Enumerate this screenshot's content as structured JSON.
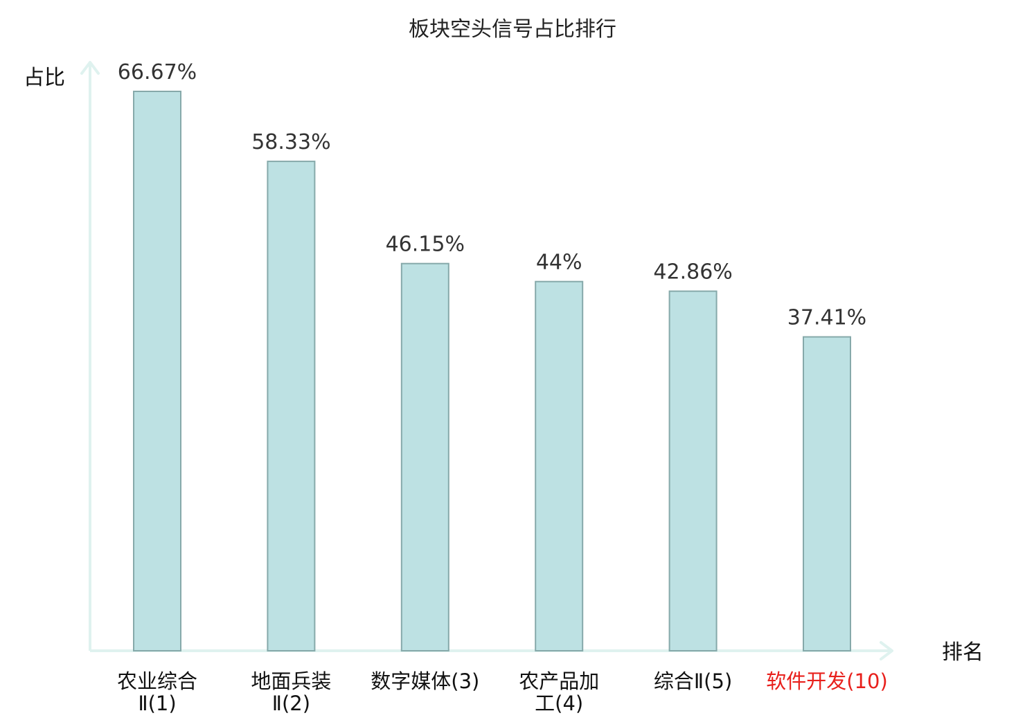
{
  "chart_data": {
    "type": "bar",
    "title": "板块空头信号占比排行",
    "ylabel": "占比",
    "xlabel": "排名",
    "ylim": [
      0,
      70
    ],
    "grid": false,
    "unit": "%",
    "categories": [
      {
        "name": "农业综合Ⅱ",
        "rank": "(1)",
        "lines": [
          "农业综合",
          "Ⅱ(1)"
        ]
      },
      {
        "name": "地面兵装Ⅱ",
        "rank": "(2)",
        "lines": [
          "地面兵装",
          "Ⅱ(2)"
        ]
      },
      {
        "name": "数字媒体",
        "rank": "(3)",
        "lines": [
          "数字媒体(3)"
        ]
      },
      {
        "name": "农产品加工",
        "rank": "(4)",
        "lines": [
          "农产品加",
          "工(4)"
        ]
      },
      {
        "name": "综合Ⅱ",
        "rank": "(5)",
        "lines": [
          "综合Ⅱ(5)"
        ]
      },
      {
        "name": "软件开发",
        "rank": "(10)",
        "lines": [
          "软件开发(10)"
        ],
        "highlight": true
      }
    ],
    "values": [
      66.67,
      58.33,
      46.15,
      44,
      42.86,
      37.41
    ],
    "value_labels": [
      "66.67%",
      "58.33%",
      "46.15%",
      "44%",
      "42.86%",
      "37.41%"
    ]
  },
  "colors": {
    "bar_fill": "#bde1e3",
    "bar_stroke": "#86a9aa",
    "axis": "#dff2ef",
    "highlight": "#e8201c",
    "text": "#111111"
  }
}
